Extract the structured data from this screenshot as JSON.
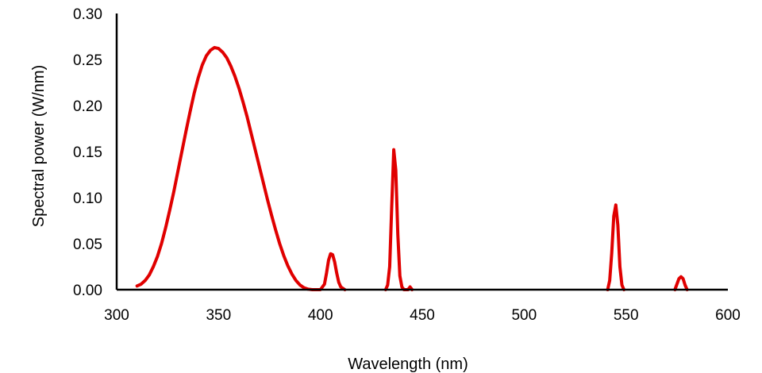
{
  "chart_data": {
    "type": "line",
    "title": "",
    "xlabel": "Wavelength (nm)",
    "ylabel": "Spectral power (W/nm)",
    "xlim": [
      300,
      600
    ],
    "ylim": [
      0,
      0.3
    ],
    "xticks": [
      "300",
      "350",
      "400",
      "450",
      "500",
      "550",
      "600"
    ],
    "yticks": [
      "0.00",
      "0.05",
      "0.10",
      "0.15",
      "0.20",
      "0.25",
      "0.30"
    ],
    "grid": false,
    "legend": "none",
    "series": [
      {
        "color": "#e00000",
        "x": [
          310,
          312,
          314,
          316,
          318,
          320,
          322,
          324,
          326,
          328,
          330,
          332,
          334,
          336,
          338,
          340,
          342,
          344,
          346,
          348,
          350,
          352,
          354,
          356,
          358,
          360,
          362,
          364,
          366,
          368,
          370,
          372,
          374,
          376,
          378,
          380,
          382,
          384,
          386,
          388,
          390,
          392,
          394,
          396,
          400,
          402,
          403,
          404,
          405,
          406,
          407,
          408,
          409,
          410,
          412,
          432,
          433,
          434,
          435,
          436,
          437,
          438,
          439,
          440,
          441,
          442,
          443,
          444,
          445,
          541,
          542,
          543,
          544,
          545,
          546,
          547,
          548,
          549,
          574,
          575,
          576,
          577,
          578,
          579,
          580
        ],
        "y": [
          0.004,
          0.006,
          0.01,
          0.016,
          0.025,
          0.036,
          0.05,
          0.067,
          0.086,
          0.106,
          0.128,
          0.15,
          0.172,
          0.193,
          0.213,
          0.23,
          0.244,
          0.254,
          0.26,
          0.263,
          0.262,
          0.258,
          0.252,
          0.243,
          0.232,
          0.219,
          0.204,
          0.188,
          0.17,
          0.152,
          0.134,
          0.116,
          0.098,
          0.081,
          0.065,
          0.05,
          0.037,
          0.026,
          0.017,
          0.01,
          0.005,
          0.002,
          0.0005,
          0.0,
          0.0,
          0.006,
          0.018,
          0.032,
          0.039,
          0.038,
          0.03,
          0.018,
          0.008,
          0.003,
          0.0,
          0.0,
          0.005,
          0.025,
          0.09,
          0.152,
          0.13,
          0.06,
          0.015,
          0.003,
          0.0,
          0.0,
          0.0,
          0.003,
          0.0,
          0.0,
          0.01,
          0.04,
          0.08,
          0.092,
          0.07,
          0.025,
          0.005,
          0.0,
          0.0,
          0.006,
          0.012,
          0.014,
          0.012,
          0.005,
          0.0
        ]
      }
    ]
  }
}
